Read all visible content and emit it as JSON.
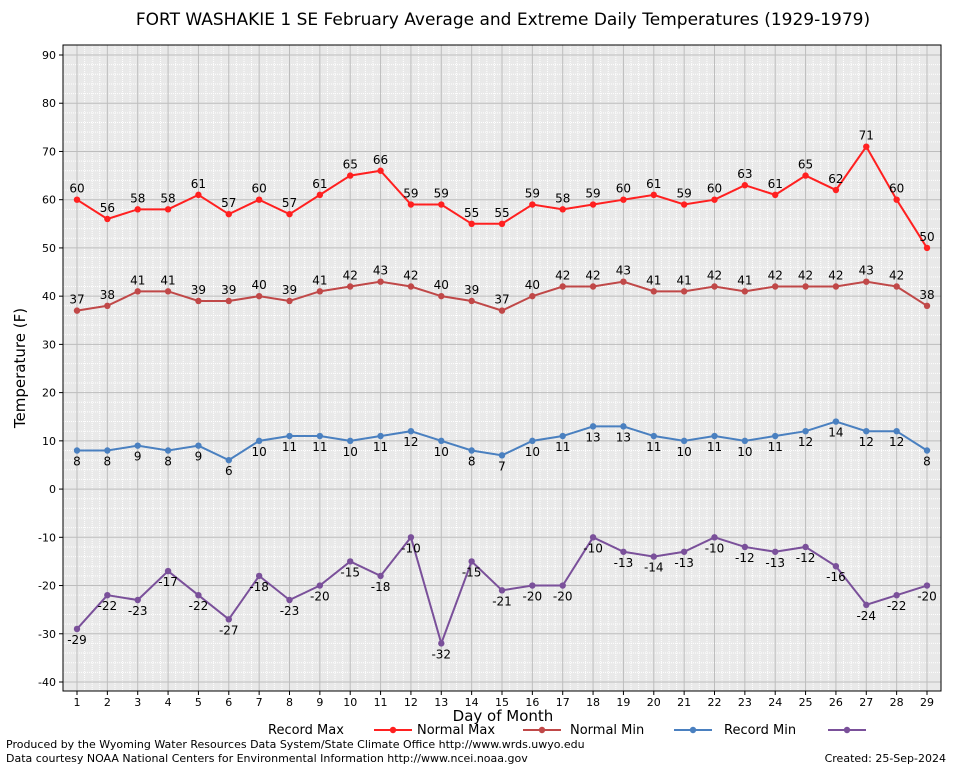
{
  "chart_data": {
    "type": "line",
    "title": "FORT WASHAKIE 1 SE February Average and Extreme Daily Temperatures (1929-1979)",
    "xlabel": "Day of Month",
    "ylabel": "Temperature (F)",
    "xlim": [
      1,
      29
    ],
    "ylim": [
      -40,
      90
    ],
    "y_ticks": [
      -40,
      -30,
      -20,
      -10,
      0,
      10,
      20,
      30,
      40,
      50,
      60,
      70,
      80,
      90
    ],
    "grid": true,
    "legend_placement": "bottom",
    "x": [
      1,
      2,
      3,
      4,
      5,
      6,
      7,
      8,
      9,
      10,
      11,
      12,
      13,
      14,
      15,
      16,
      17,
      18,
      19,
      20,
      21,
      22,
      23,
      24,
      25,
      26,
      27,
      28,
      29
    ],
    "series": [
      {
        "name": "Record Max",
        "color": "#ff2020",
        "label_position": "above",
        "values": [
          60,
          56,
          58,
          58,
          61,
          57,
          60,
          57,
          61,
          65,
          66,
          59,
          59,
          55,
          55,
          59,
          58,
          59,
          60,
          61,
          59,
          60,
          63,
          61,
          65,
          62,
          71,
          60,
          50
        ]
      },
      {
        "name": "Normal Max",
        "color": "#c04848",
        "label_position": "above",
        "values": [
          37,
          38,
          41,
          41,
          39,
          39,
          40,
          39,
          41,
          42,
          43,
          42,
          40,
          39,
          37,
          40,
          42,
          42,
          43,
          41,
          41,
          42,
          41,
          42,
          42,
          42,
          43,
          42,
          38
        ]
      },
      {
        "name": "Normal Min",
        "color": "#4a80c0",
        "label_position": "below",
        "values": [
          8,
          8,
          9,
          8,
          9,
          6,
          10,
          11,
          11,
          10,
          11,
          12,
          10,
          8,
          7,
          10,
          11,
          13,
          13,
          11,
          10,
          11,
          10,
          11,
          12,
          14,
          12,
          12,
          8
        ]
      },
      {
        "name": "Record Min",
        "color": "#7a509a",
        "label_position": "below",
        "values": [
          -29,
          -22,
          -23,
          -17,
          -22,
          -27,
          -18,
          -23,
          -20,
          -15,
          -18,
          -10,
          -32,
          -15,
          -21,
          -20,
          -20,
          -10,
          -13,
          -14,
          -13,
          -10,
          -12,
          -13,
          -12,
          -16,
          -24,
          -22,
          -20
        ]
      }
    ]
  },
  "footer": {
    "credit_line1": "Produced by the Wyoming Water Resources Data System/State Climate Office http://www.wrds.uwyo.edu",
    "credit_line2": "Data courtesy NOAA National Centers for Environmental Information http://www.ncei.noaa.gov",
    "created": "Created:  25-Sep-2024"
  }
}
